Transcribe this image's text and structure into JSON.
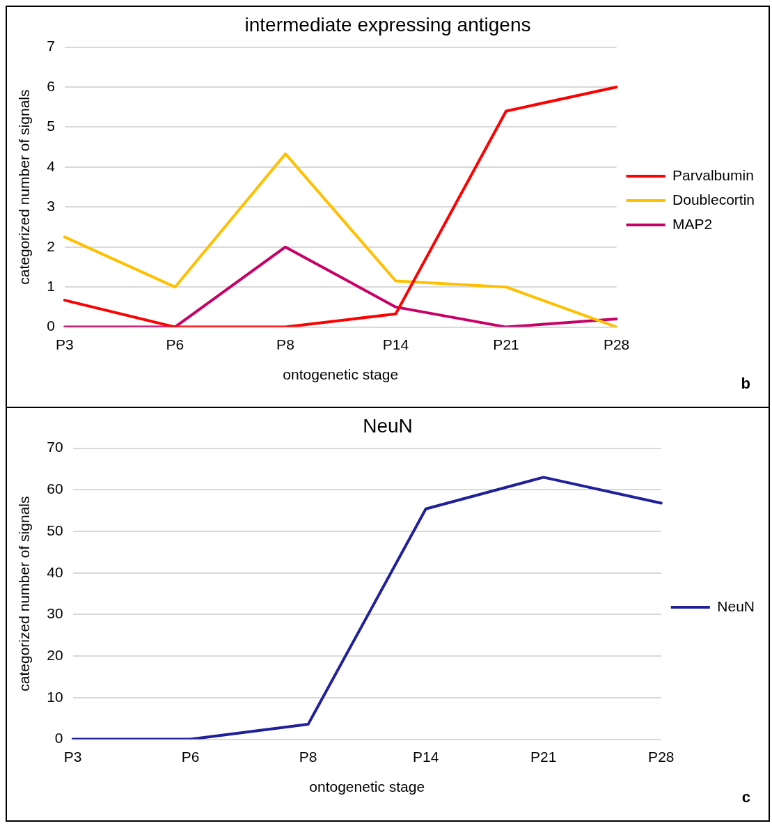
{
  "chart_data": [
    {
      "type": "line",
      "title": "intermediate expressing antigens",
      "xlabel": "ontogenetic stage",
      "ylabel": "categorized number of signals",
      "annotations": [
        "b"
      ],
      "categories": [
        "P3",
        "P6",
        "P8",
        "P14",
        "P21",
        "P28"
      ],
      "series": [
        {
          "name": "Parvalbumin",
          "color": "#ff0000",
          "values": [
            0.67,
            0,
            0,
            0.33,
            5.4,
            6
          ]
        },
        {
          "name": "Doublecortin",
          "color": "#ffc000",
          "values": [
            2.25,
            1,
            4.33,
            1.15,
            1,
            0
          ]
        },
        {
          "name": "MAP2",
          "color": "#c80066",
          "values": [
            0,
            0,
            2,
            0.5,
            0,
            0.2
          ]
        }
      ],
      "ylim": [
        0,
        7
      ],
      "yticks": [
        0,
        1,
        2,
        3,
        4,
        5,
        6,
        7
      ],
      "grid": "y",
      "legend": "right",
      "marker": "none",
      "line_style": "solid"
    },
    {
      "type": "line",
      "title": "NeuN",
      "xlabel": "ontogenetic stage",
      "ylabel": "categorized number of signals",
      "annotations": [
        "c"
      ],
      "categories": [
        "P3",
        "P6",
        "P8",
        "P14",
        "P21",
        "P28"
      ],
      "series": [
        {
          "name": "NeuN",
          "color": "#20209a",
          "values": [
            0,
            0,
            3.6,
            55.4,
            63,
            56.8
          ]
        }
      ],
      "ylim": [
        0,
        70
      ],
      "yticks": [
        0,
        10,
        20,
        30,
        40,
        50,
        60,
        70
      ],
      "grid": "y",
      "legend": "right",
      "marker": "none",
      "line_style": "solid"
    }
  ]
}
